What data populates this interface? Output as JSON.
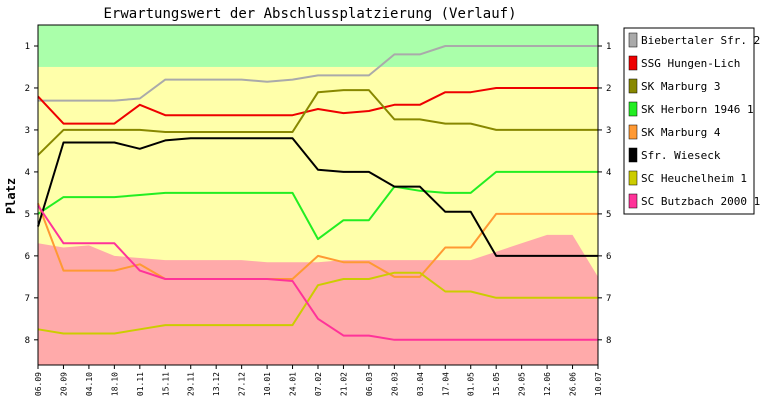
{
  "chart_data": {
    "type": "line",
    "title": "Erwartungswert der Abschlussplatzierung (Verlauf)",
    "ylabel": "Platz",
    "xlabel": "",
    "y_reversed": true,
    "ylim": [
      0.5,
      8.6
    ],
    "yticks": [
      1,
      2,
      3,
      4,
      5,
      6,
      7,
      8
    ],
    "grid": false,
    "legend_position": "right",
    "categories": [
      "06.09",
      "20.09",
      "04.10",
      "18.10",
      "01.11",
      "15.11",
      "29.11",
      "13.12",
      "27.12",
      "10.01",
      "24.01",
      "07.02",
      "21.02",
      "06.03",
      "20.03",
      "03.04",
      "17.04",
      "01.05",
      "15.05",
      "29.05",
      "12.06",
      "26.06",
      "10.07"
    ],
    "zones": [
      {
        "name": "top",
        "from": 0.5,
        "to": 1.5,
        "color": "#aaffaa"
      },
      {
        "name": "middle",
        "from": 1.5,
        "to": 8.6,
        "color": "#ffffaa"
      }
    ],
    "risk_band": {
      "color": "#ffaaaa",
      "upper": [
        5.7,
        5.8,
        5.75,
        6.0,
        6.05,
        6.1,
        6.1,
        6.1,
        6.1,
        6.15,
        6.15,
        6.15,
        6.1,
        6.1,
        6.1,
        6.1,
        6.1,
        6.1,
        5.9,
        5.7,
        5.5,
        5.5,
        6.5
      ]
    },
    "series": [
      {
        "name": "Biebertaler Sfr. 2",
        "color": "#aaaaaa",
        "values": [
          2.3,
          2.3,
          2.3,
          2.3,
          2.25,
          1.8,
          1.8,
          1.8,
          1.8,
          1.85,
          1.8,
          1.7,
          1.7,
          1.7,
          1.2,
          1.2,
          1.0,
          1.0,
          1.0,
          1.0,
          1.0,
          1.0,
          1.0
        ]
      },
      {
        "name": "SSG Hungen-Lich",
        "color": "#ee0000",
        "values": [
          2.2,
          2.85,
          2.85,
          2.85,
          2.4,
          2.65,
          2.65,
          2.65,
          2.65,
          2.65,
          2.65,
          2.5,
          2.6,
          2.55,
          2.4,
          2.4,
          2.1,
          2.1,
          2.0,
          2.0,
          2.0,
          2.0,
          2.0
        ]
      },
      {
        "name": "SK Marburg 3",
        "color": "#888800",
        "values": [
          3.6,
          3.0,
          3.0,
          3.0,
          3.0,
          3.05,
          3.05,
          3.05,
          3.05,
          3.05,
          3.05,
          2.1,
          2.05,
          2.05,
          2.75,
          2.75,
          2.85,
          2.85,
          3.0,
          3.0,
          3.0,
          3.0,
          3.0
        ]
      },
      {
        "name": "SK Herborn 1946 1",
        "color": "#22ee22",
        "values": [
          5.0,
          4.6,
          4.6,
          4.6,
          4.55,
          4.5,
          4.5,
          4.5,
          4.5,
          4.5,
          4.5,
          5.6,
          5.15,
          5.15,
          4.35,
          4.45,
          4.5,
          4.5,
          4.0,
          4.0,
          4.0,
          4.0,
          4.0
        ]
      },
      {
        "name": "SK Marburg 4",
        "color": "#ff9933",
        "values": [
          4.75,
          6.35,
          6.35,
          6.35,
          6.2,
          6.55,
          6.55,
          6.55,
          6.55,
          6.55,
          6.55,
          6.0,
          6.15,
          6.15,
          6.5,
          6.5,
          5.8,
          5.8,
          5.0,
          5.0,
          5.0,
          5.0,
          5.0
        ]
      },
      {
        "name": "Sfr. Wieseck",
        "color": "#000000",
        "values": [
          5.3,
          3.3,
          3.3,
          3.3,
          3.45,
          3.25,
          3.2,
          3.2,
          3.2,
          3.2,
          3.2,
          3.95,
          4.0,
          4.0,
          4.35,
          4.35,
          4.95,
          4.95,
          6.0,
          6.0,
          6.0,
          6.0,
          6.0
        ]
      },
      {
        "name": "SC Heuchelheim 1",
        "color": "#cccc00",
        "values": [
          7.75,
          7.85,
          7.85,
          7.85,
          7.75,
          7.65,
          7.65,
          7.65,
          7.65,
          7.65,
          7.65,
          6.7,
          6.55,
          6.55,
          6.4,
          6.4,
          6.85,
          6.85,
          7.0,
          7.0,
          7.0,
          7.0,
          7.0
        ]
      },
      {
        "name": "SC Butzbach 2000 1",
        "color": "#ff3399",
        "values": [
          4.8,
          5.7,
          5.7,
          5.7,
          6.35,
          6.55,
          6.55,
          6.55,
          6.55,
          6.55,
          6.6,
          7.5,
          7.9,
          7.9,
          8.0,
          8.0,
          8.0,
          8.0,
          8.0,
          8.0,
          8.0,
          8.0,
          8.0
        ]
      }
    ]
  }
}
